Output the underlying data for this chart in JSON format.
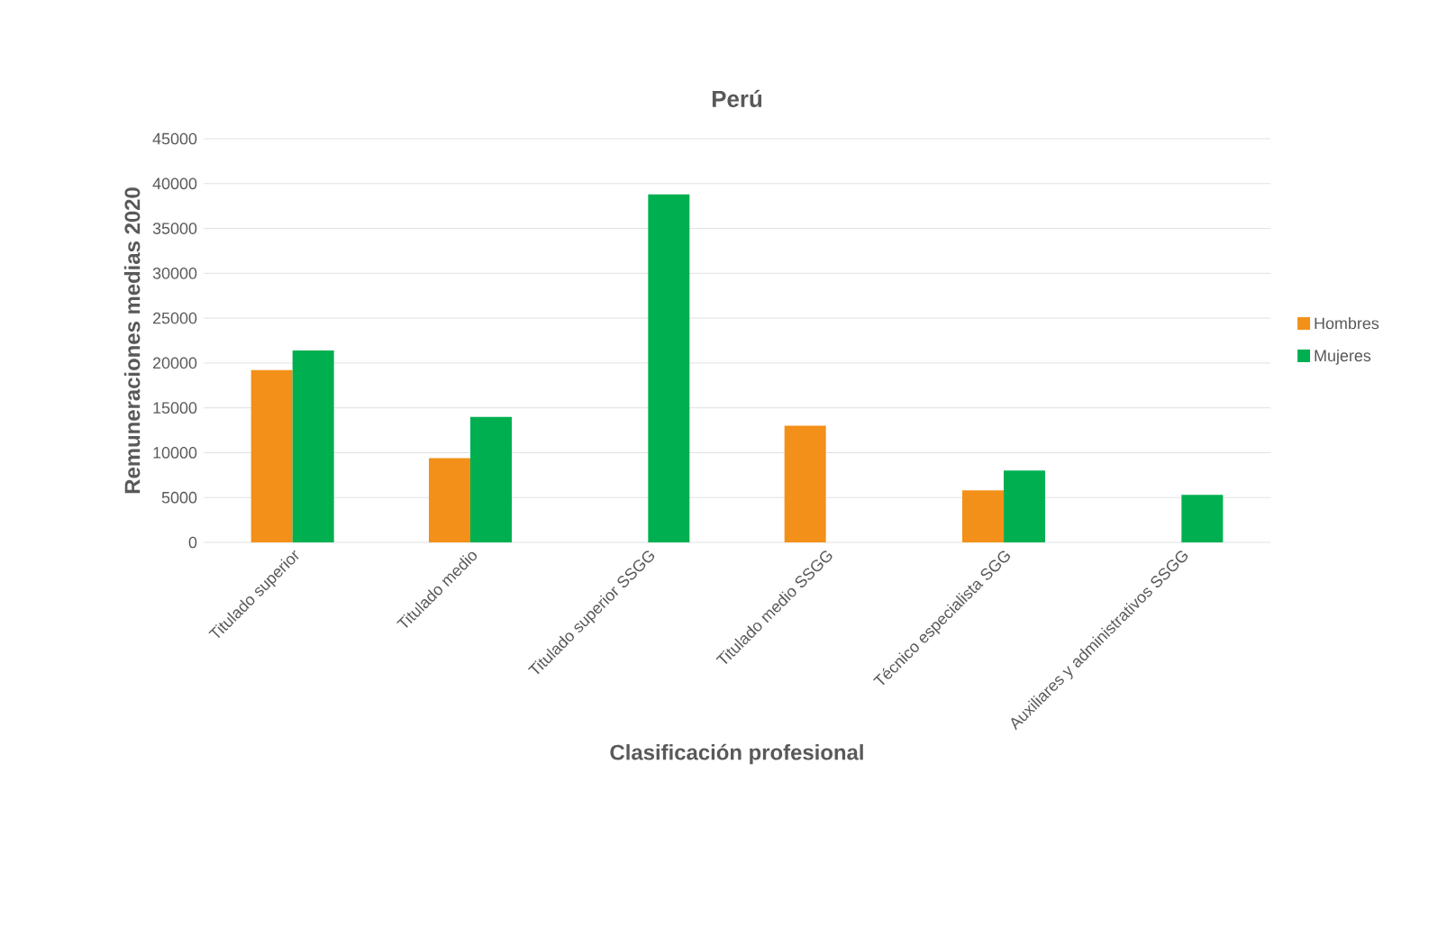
{
  "chart_data": {
    "type": "bar",
    "title": "Perú",
    "xlabel": "Clasificación profesional",
    "ylabel": "Remuneraciones medias 2020",
    "categories": [
      "Titulado superior",
      "Titulado medio",
      "Titulado superior SSGG",
      "Titulado medio SSGG",
      "Técnico especialista SGG",
      "Auxiliares y administrativos SSGG"
    ],
    "series": [
      {
        "name": "Hombres",
        "color": "#f39019",
        "values": [
          19200,
          9400,
          null,
          13000,
          5800,
          null
        ]
      },
      {
        "name": "Mujeres",
        "color": "#00b050",
        "values": [
          21400,
          14000,
          38800,
          null,
          8000,
          5300
        ]
      }
    ],
    "ylim": [
      0,
      45000
    ],
    "yticks": [
      0,
      5000,
      10000,
      15000,
      20000,
      25000,
      30000,
      35000,
      40000,
      45000
    ],
    "grid": "y",
    "legend": "right"
  }
}
